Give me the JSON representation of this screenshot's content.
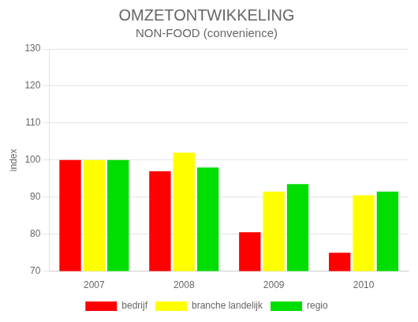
{
  "chart_data": {
    "type": "bar",
    "title": "OMZETONTWIKKELING",
    "subtitle": "NON-FOOD (convenience)",
    "categories": [
      "2007",
      "2008",
      "2009",
      "2010"
    ],
    "series": [
      {
        "name": "bedrijf",
        "color": "#ff0000",
        "values": [
          100,
          97,
          80.5,
          75
        ]
      },
      {
        "name": "branche landelijk",
        "color": "#ffff00",
        "values": [
          100,
          102,
          91.5,
          90.5
        ]
      },
      {
        "name": "regio",
        "color": "#00dd00",
        "values": [
          100,
          98,
          93.5,
          91.5
        ]
      }
    ],
    "ylabel": "index",
    "ylim": [
      70,
      130
    ],
    "yticks": [
      70,
      80,
      90,
      100,
      110,
      120,
      130
    ],
    "grid": true,
    "legend": "bottom"
  }
}
